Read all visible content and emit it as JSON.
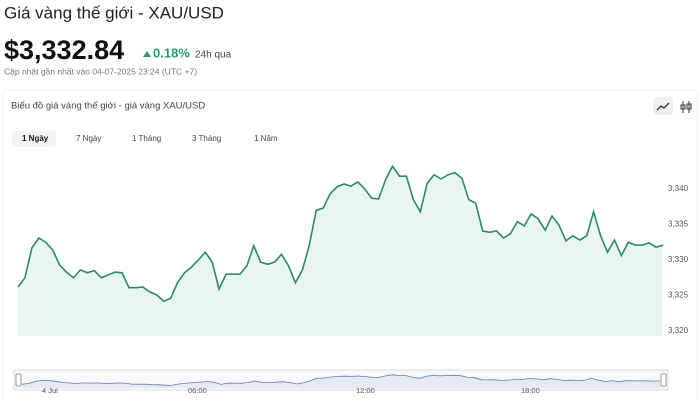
{
  "header": {
    "title": "Giá vàng thế giới - XAU/USD",
    "price": "$3,332.84",
    "change": "0.18%",
    "change_period": "24h qua",
    "updated": "Cập nhật gần nhất vào 04-07-2025 23:24 (UTC +7)"
  },
  "card": {
    "title": "Biểu đồ giá vàng thế giới - giá vàng XAU/USD",
    "tabs": [
      "1 Ngày",
      "7 Ngày",
      "1 Tháng",
      "3 Tháng",
      "1 Năm"
    ]
  },
  "navigator": {
    "labels": [
      "4 Jul",
      "06:00",
      "12:00",
      "18:00"
    ]
  },
  "chart_data": {
    "type": "line",
    "color": "#2b8a67",
    "area_color": "#e9f6ef",
    "values": [
      3326.2,
      3327.5,
      3331.7,
      3333.1,
      3332.5,
      3331.4,
      3329.3,
      3328.3,
      3327.5,
      3328.6,
      3328.2,
      3328.5,
      3327.5,
      3327.9,
      3328.3,
      3328.2,
      3326.1,
      3326.1,
      3326.2,
      3325.5,
      3325.1,
      3324.2,
      3324.6,
      3326.8,
      3328.2,
      3329.0,
      3330.0,
      3331.1,
      3329.7,
      3325.9,
      3328.0,
      3328.0,
      3328.0,
      3329.2,
      3332.0,
      3329.7,
      3329.4,
      3329.7,
      3330.8,
      3329.2,
      3326.8,
      3328.6,
      3332.1,
      3337.0,
      3337.3,
      3339.3,
      3340.3,
      3340.7,
      3340.4,
      3341.0,
      3340.0,
      3338.7,
      3338.6,
      3341.3,
      3343.2,
      3341.8,
      3341.8,
      3338.5,
      3336.8,
      3340.8,
      3342.0,
      3341.4,
      3342.0,
      3342.3,
      3341.5,
      3338.5,
      3338.0,
      3334.1,
      3333.9,
      3334.1,
      3333.1,
      3333.7,
      3335.4,
      3334.8,
      3336.5,
      3335.8,
      3334.2,
      3336.2,
      3334.9,
      3332.7,
      3333.4,
      3332.8,
      3333.4,
      3336.8,
      3333.4,
      3331.1,
      3332.8,
      3330.6,
      3332.5,
      3332.1,
      3332.1,
      3332.4,
      3331.8,
      3332.1
    ],
    "ylim": [
      3319.3,
      3348.3
    ],
    "yticks": [
      {
        "value": 3320,
        "label": "3,320"
      },
      {
        "value": 3325,
        "label": "3,325"
      },
      {
        "value": 3330,
        "label": "3,330"
      },
      {
        "value": 3335,
        "label": "3,335"
      },
      {
        "value": 3340,
        "label": "3,340"
      }
    ]
  }
}
